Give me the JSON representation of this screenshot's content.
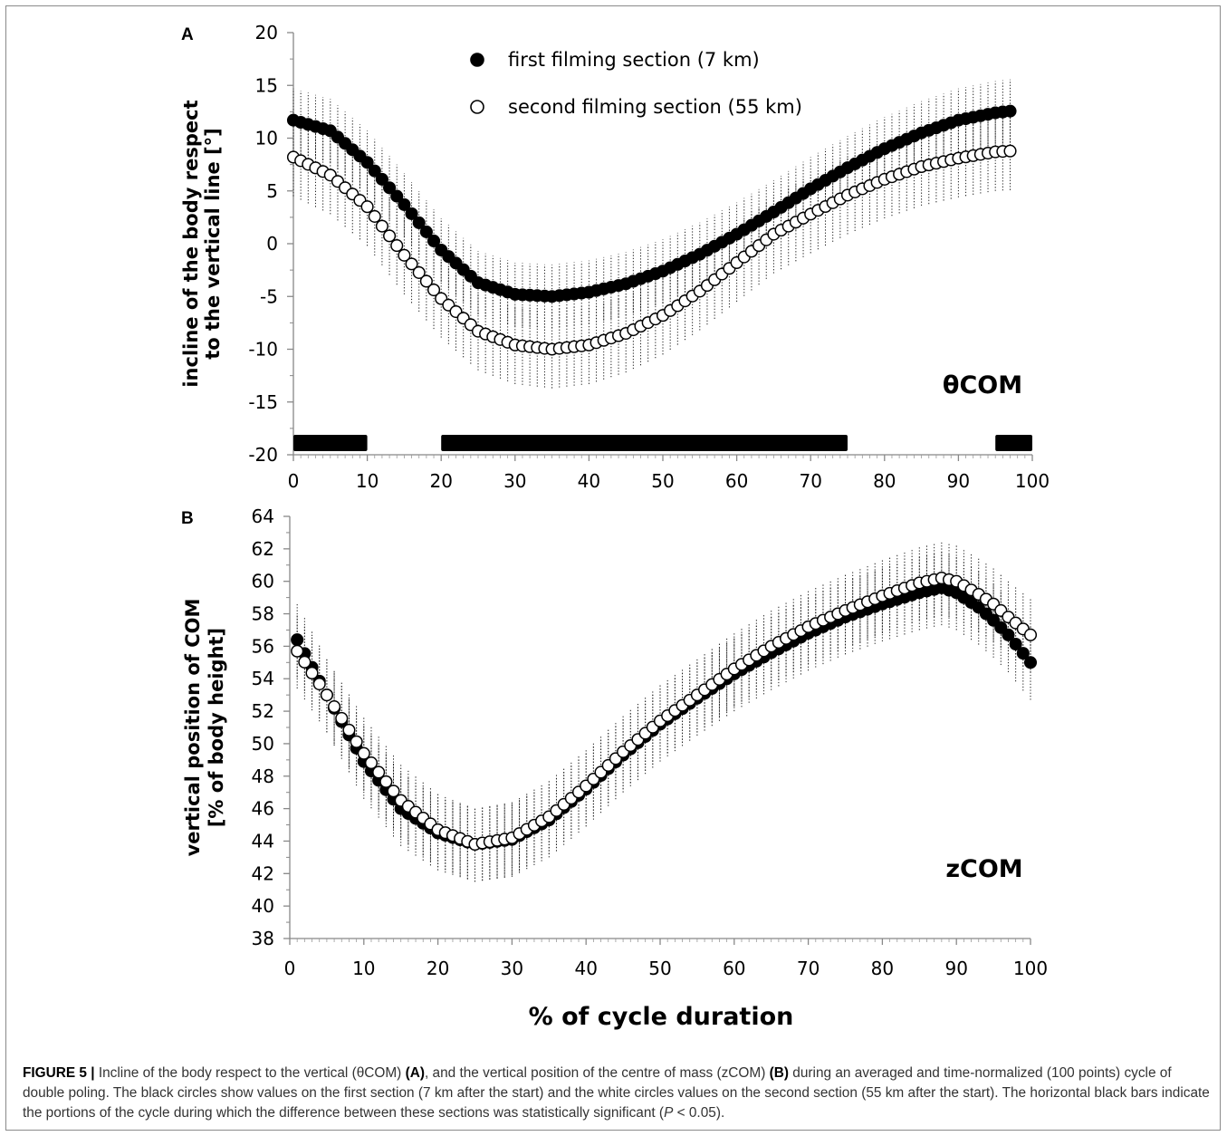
{
  "chart_data": [
    {
      "panel": "A",
      "type": "scatter",
      "annotation": "θCOM",
      "ylabel_line1": "incline of the body respect",
      "ylabel_line2": "to the vertical line [°]",
      "ylim": [
        -20,
        20
      ],
      "yticks": [
        20,
        15,
        10,
        5,
        0,
        -5,
        -10,
        -15,
        -20
      ],
      "xlim": [
        0,
        100
      ],
      "xticks": [
        0,
        10,
        20,
        30,
        40,
        50,
        60,
        70,
        80,
        90,
        100
      ],
      "legend": [
        {
          "name": "first filming section (7 km)",
          "marker": "filled"
        },
        {
          "name": "second filming section (55 km)",
          "marker": "open"
        }
      ],
      "significance_bars": [
        [
          0,
          10
        ],
        [
          20,
          75
        ],
        [
          95,
          100
        ]
      ],
      "series": [
        {
          "name": "first filming section (7 km)",
          "marker": "filled",
          "x_start": 0,
          "x_end": 97.5,
          "error_sd": 3,
          "knots": [
            [
              0,
              11.7
            ],
            [
              5,
              10.7
            ],
            [
              10,
              7.7
            ],
            [
              15,
              3.7
            ],
            [
              20,
              -0.6
            ],
            [
              25,
              -3.7
            ],
            [
              30,
              -4.8
            ],
            [
              35,
              -5.0
            ],
            [
              40,
              -4.6
            ],
            [
              45,
              -3.8
            ],
            [
              50,
              -2.6
            ],
            [
              55,
              -1.0
            ],
            [
              60,
              0.9
            ],
            [
              65,
              3.0
            ],
            [
              70,
              5.2
            ],
            [
              75,
              7.2
            ],
            [
              80,
              9.0
            ],
            [
              85,
              10.5
            ],
            [
              90,
              11.7
            ],
            [
              95,
              12.4
            ],
            [
              97.5,
              12.6
            ]
          ]
        },
        {
          "name": "second filming section (55 km)",
          "marker": "open",
          "x_start": 0,
          "x_end": 97.5,
          "error_sd": 3.7,
          "knots": [
            [
              0,
              8.2
            ],
            [
              5,
              6.5
            ],
            [
              10,
              3.5
            ],
            [
              15,
              -1.1
            ],
            [
              20,
              -5.2
            ],
            [
              25,
              -8.3
            ],
            [
              30,
              -9.6
            ],
            [
              35,
              -10.0
            ],
            [
              40,
              -9.6
            ],
            [
              45,
              -8.5
            ],
            [
              50,
              -6.8
            ],
            [
              55,
              -4.5
            ],
            [
              60,
              -1.8
            ],
            [
              65,
              0.9
            ],
            [
              70,
              2.8
            ],
            [
              75,
              4.6
            ],
            [
              80,
              6.1
            ],
            [
              85,
              7.3
            ],
            [
              90,
              8.1
            ],
            [
              95,
              8.7
            ],
            [
              97.5,
              8.8
            ]
          ]
        }
      ]
    },
    {
      "panel": "B",
      "type": "scatter",
      "annotation": "zCOM",
      "ylabel_line1": "vertical position of COM",
      "ylabel_line2": "[% of body height]",
      "ylim": [
        38,
        64
      ],
      "yticks": [
        64,
        62,
        60,
        58,
        56,
        54,
        52,
        50,
        48,
        46,
        44,
        42,
        40,
        38
      ],
      "xlim": [
        0,
        100
      ],
      "xticks": [
        0,
        10,
        20,
        30,
        40,
        50,
        60,
        70,
        80,
        90,
        100
      ],
      "xlabel": "% of cycle duration",
      "series": [
        {
          "name": "first filming section (7 km)",
          "marker": "filled",
          "x_start": 1,
          "x_end": 100,
          "error_sd": 2.3,
          "knots": [
            [
              1,
              56.4
            ],
            [
              5,
              53.0
            ],
            [
              10,
              48.9
            ],
            [
              15,
              46.0
            ],
            [
              20,
              44.5
            ],
            [
              25,
              43.8
            ],
            [
              30,
              44.1
            ],
            [
              35,
              45.3
            ],
            [
              40,
              47.2
            ],
            [
              45,
              49.3
            ],
            [
              50,
              51.2
            ],
            [
              55,
              52.8
            ],
            [
              60,
              54.3
            ],
            [
              65,
              55.6
            ],
            [
              70,
              56.8
            ],
            [
              75,
              57.8
            ],
            [
              80,
              58.6
            ],
            [
              85,
              59.3
            ],
            [
              88,
              59.6
            ],
            [
              90,
              59.3
            ],
            [
              93,
              58.4
            ],
            [
              95,
              57.6
            ],
            [
              97,
              56.7
            ],
            [
              100,
              55.0
            ]
          ]
        },
        {
          "name": "second filming section (55 km)",
          "marker": "open",
          "x_start": 1,
          "x_end": 100,
          "error_sd": 2.3,
          "knots": [
            [
              1,
              55.7
            ],
            [
              5,
              53.0
            ],
            [
              10,
              49.4
            ],
            [
              15,
              46.5
            ],
            [
              20,
              44.7
            ],
            [
              25,
              43.8
            ],
            [
              30,
              44.2
            ],
            [
              35,
              45.5
            ],
            [
              40,
              47.4
            ],
            [
              45,
              49.5
            ],
            [
              50,
              51.4
            ],
            [
              55,
              53.0
            ],
            [
              60,
              54.6
            ],
            [
              65,
              56.0
            ],
            [
              70,
              57.2
            ],
            [
              75,
              58.2
            ],
            [
              80,
              59.1
            ],
            [
              85,
              59.9
            ],
            [
              88,
              60.2
            ],
            [
              90,
              60.0
            ],
            [
              93,
              59.2
            ],
            [
              95,
              58.6
            ],
            [
              97,
              57.8
            ],
            [
              100,
              56.7
            ]
          ]
        }
      ]
    }
  ],
  "caption": {
    "label": "FIGURE 5 |",
    "seg1": " Incline of the body respect to the vertical (θCOM) ",
    "ref_a": "(A)",
    "seg2": ", and the vertical position of the centre of mass (zCOM) ",
    "ref_b": "(B)",
    "seg3": " during an averaged and time-normalized (100 points) cycle of double poling. The black circles show values on the first section (7 km after the start) and the white circles values on the second section (55 km after the start). The horizontal black bars indicate the portions of the cycle during which the difference between these sections was statistically significant (",
    "p_symbol": "P",
    "seg4": " < 0.05)."
  }
}
